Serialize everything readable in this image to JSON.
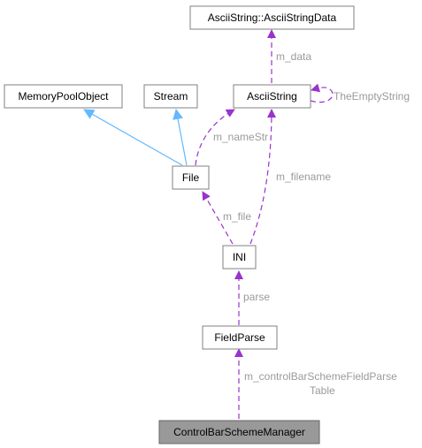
{
  "colors": {
    "usage_edge": "#9a32cd",
    "inherit_edge": "#63b8ff",
    "label": "#9a9a9a",
    "node_border": "#808080",
    "highlight_fill": "#999999"
  },
  "nodes": {
    "ascii_string_data": "AsciiString::AsciiStringData",
    "memory_pool_object": "MemoryPoolObject",
    "stream": "Stream",
    "ascii_string": "AsciiString",
    "file": "File",
    "ini": "INI",
    "field_parse": "FieldParse",
    "control_bar_scheme_manager": "ControlBarSchemeManager"
  },
  "edge_labels": {
    "m_data": "m_data",
    "the_empty_string": "TheEmptyString",
    "m_name_str": "m_nameStr",
    "m_filename": "m_filename",
    "m_file": "m_file",
    "parse": "parse",
    "m_control_bar_line1": "m_controlBarSchemeFieldParse",
    "m_control_bar_line2": "Table"
  }
}
